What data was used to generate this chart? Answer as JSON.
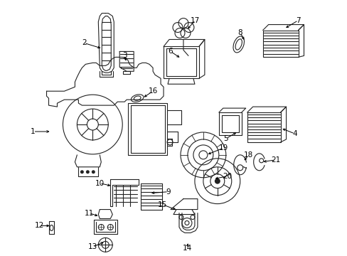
{
  "background_color": "#ffffff",
  "line_color": "#222222",
  "text_color": "#000000",
  "fig_width": 4.89,
  "fig_height": 3.6,
  "dpi": 100
}
